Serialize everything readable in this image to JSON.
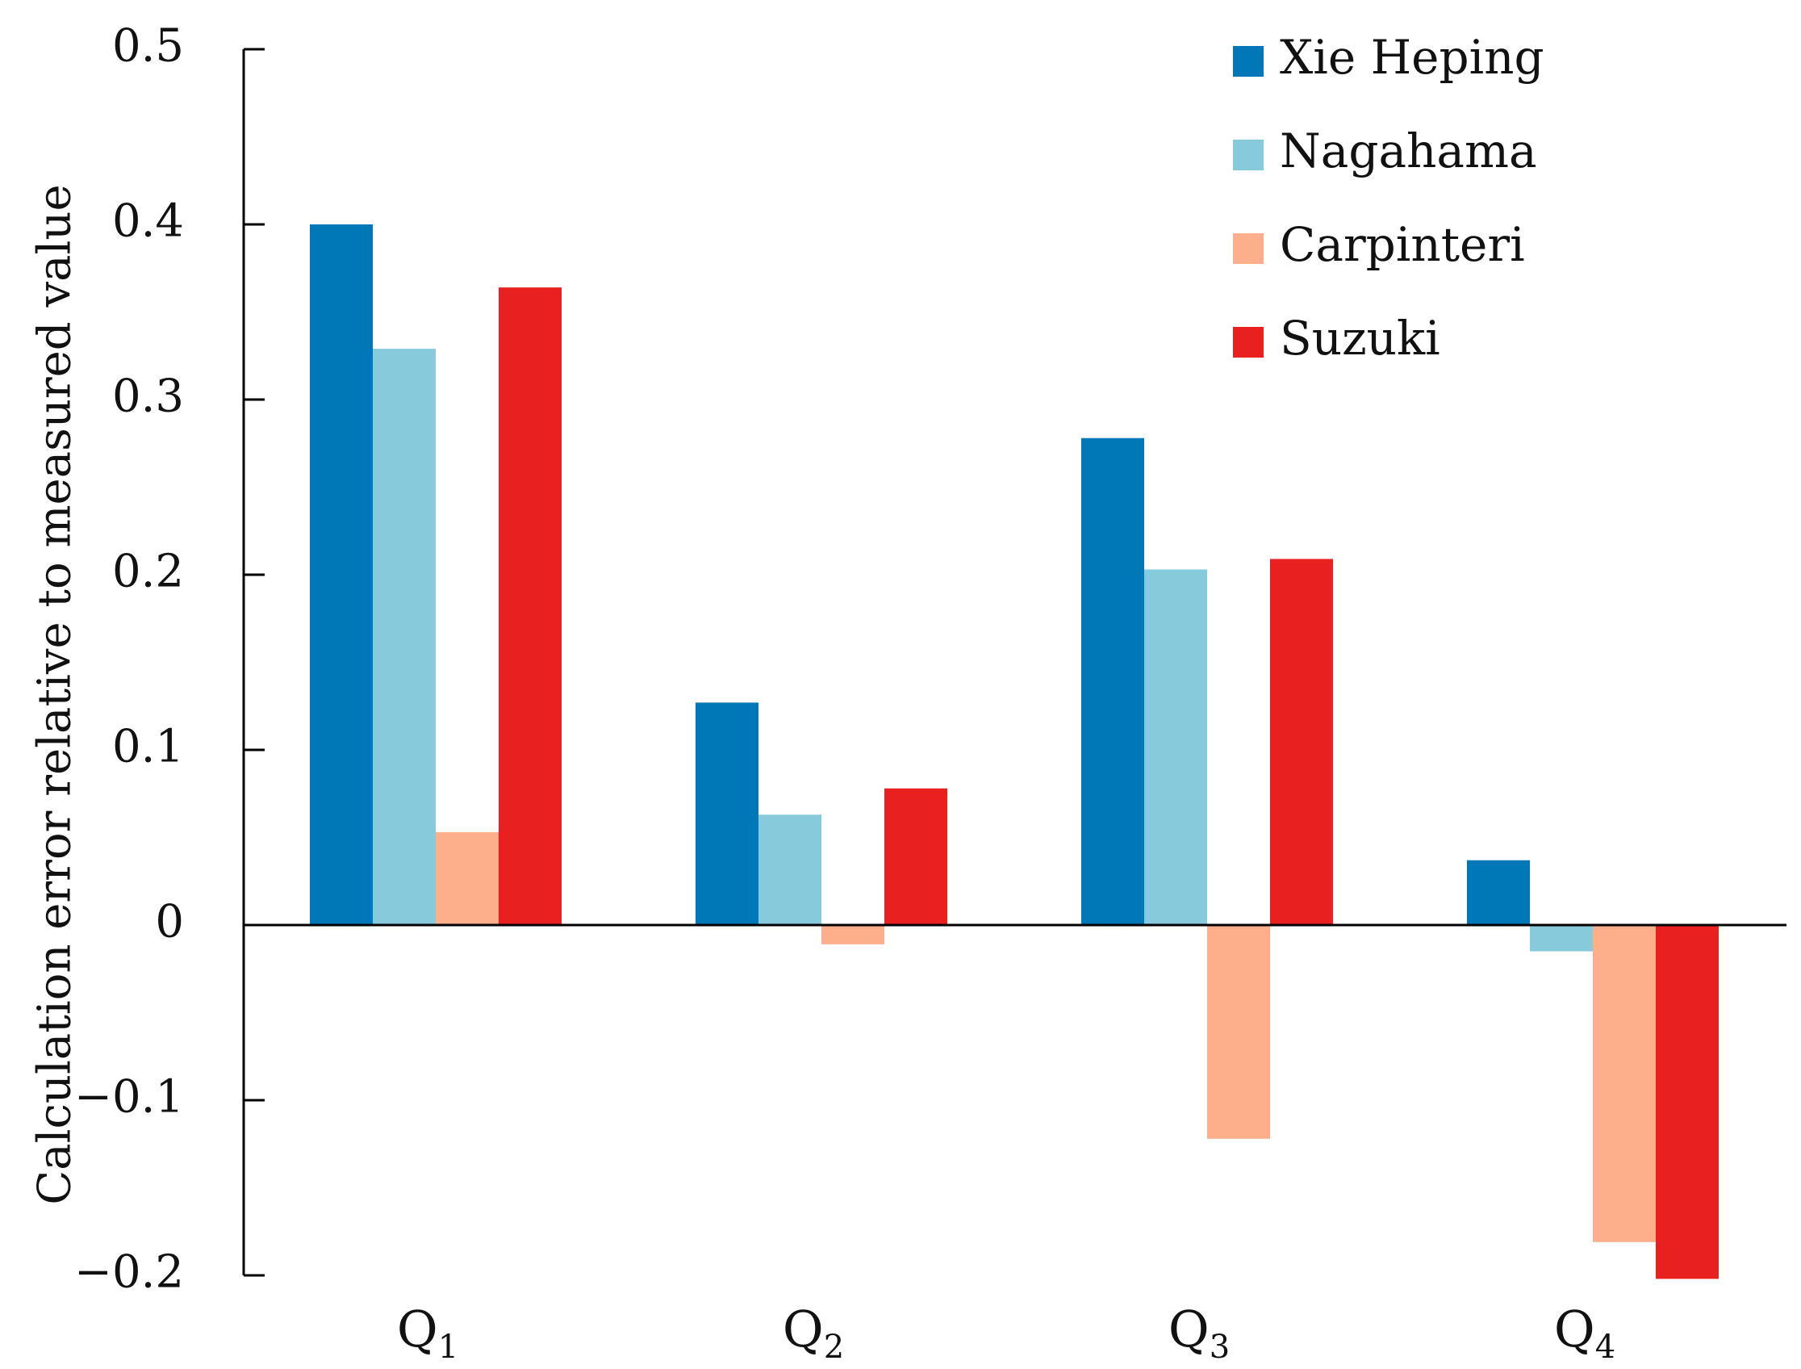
{
  "chart_data": {
    "type": "bar",
    "title": "",
    "xlabel": "",
    "ylabel": "Calculation error relative to measured value",
    "ylim": [
      -0.2,
      0.5
    ],
    "yticks": [
      0.5,
      0.4,
      0.3,
      0.2,
      0.1,
      0,
      -0.1,
      -0.2
    ],
    "ytick_labels": [
      "0.5",
      "0.4",
      "0.3",
      "0.2",
      "0.1",
      "0",
      "−0.1",
      "−0.2"
    ],
    "categories": [
      {
        "base": "Q",
        "sub": "1"
      },
      {
        "base": "Q",
        "sub": "2"
      },
      {
        "base": "Q",
        "sub": "3"
      },
      {
        "base": "Q",
        "sub": "4"
      }
    ],
    "series": [
      {
        "name": "Xie Heping",
        "color": "#0077B6",
        "values": [
          0.4,
          0.127,
          0.278,
          0.037
        ]
      },
      {
        "name": "Nagahama",
        "color": "#87CADC",
        "values": [
          0.329,
          0.063,
          0.203,
          -0.015
        ]
      },
      {
        "name": "Carpinteri",
        "color": "#FDAF8C",
        "values": [
          0.053,
          -0.011,
          -0.122,
          -0.181
        ]
      },
      {
        "name": "Suzuki",
        "color": "#E8201F",
        "values": [
          0.364,
          0.078,
          0.209,
          -0.202
        ]
      }
    ],
    "legend_position": "top-right",
    "grid": false,
    "axis_color": "#000000"
  }
}
